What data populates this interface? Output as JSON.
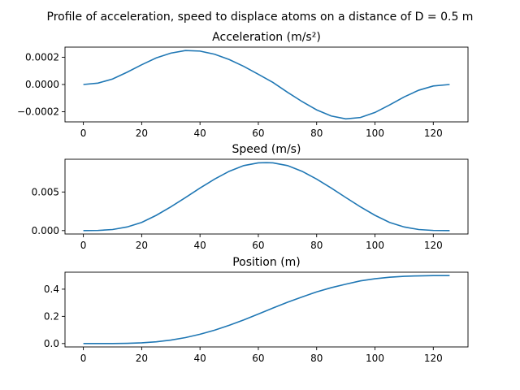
{
  "figure": {
    "suptitle": "Profile of acceleration, speed to displace atoms on a distance of D = 0.5 m",
    "line_color": "#1f77b4"
  },
  "chart_data": [
    {
      "type": "line",
      "title": "Acceleration (m/s²)",
      "xlabel": "",
      "ylabel": "",
      "xlim": [
        -6.3,
        131.9
      ],
      "ylim": [
        -0.000274,
        0.000274
      ],
      "xticks": [
        0,
        20,
        40,
        60,
        80,
        100,
        120
      ],
      "xtick_labels": [
        "0",
        "20",
        "40",
        "60",
        "80",
        "100",
        "120"
      ],
      "yticks": [
        0.0002,
        0.0,
        -0.0002
      ],
      "ytick_labels": [
        "0.0002",
        "0.0000",
        "−0.0002"
      ],
      "grid": false,
      "legend": "none",
      "series": [
        {
          "x": [
            0,
            5,
            10,
            15,
            20,
            25,
            30,
            35,
            40,
            45,
            50,
            55,
            60,
            65,
            70,
            75,
            80,
            85,
            90,
            95,
            100,
            105,
            110,
            115,
            120,
            125.6
          ],
          "y": [
            0.0,
            1e-05,
            4e-05,
            9e-05,
            0.000145,
            0.000195,
            0.00023,
            0.000249,
            0.000245,
            0.000222,
            0.000183,
            0.000133,
            7.5e-05,
            1.5e-05,
            -5.7e-05,
            -0.000125,
            -0.000186,
            -0.000231,
            -0.000252,
            -0.000242,
            -0.000205,
            -0.00015,
            -9.1e-05,
            -4.2e-05,
            -1.1e-05,
            0.0
          ]
        }
      ]
    },
    {
      "type": "line",
      "title": "Speed (m/s)",
      "xlabel": "",
      "ylabel": "",
      "xlim": [
        -6.3,
        131.9
      ],
      "ylim": [
        -0.00044,
        0.00924
      ],
      "xticks": [
        0,
        20,
        40,
        60,
        80,
        100,
        120
      ],
      "xtick_labels": [
        "0",
        "20",
        "40",
        "60",
        "80",
        "100",
        "120"
      ],
      "yticks": [
        0.005,
        0.0
      ],
      "ytick_labels": [
        "0.005",
        "0.000"
      ],
      "grid": false,
      "legend": "none",
      "series": [
        {
          "x": [
            0,
            5,
            10,
            15,
            20,
            25,
            30,
            35,
            40,
            45,
            50,
            55,
            60,
            62.8,
            65,
            70,
            75,
            80,
            85,
            90,
            95,
            100,
            105,
            110,
            115,
            120,
            125.6
          ],
          "y": [
            0.0,
            2e-05,
            0.00014,
            0.00047,
            0.00106,
            0.00198,
            0.00308,
            0.00428,
            0.00551,
            0.00667,
            0.00768,
            0.00842,
            0.00877,
            0.0088,
            0.00877,
            0.00842,
            0.00768,
            0.00667,
            0.00551,
            0.00428,
            0.00308,
            0.00198,
            0.00106,
            0.00047,
            0.00014,
            2e-05,
            0.0
          ]
        }
      ]
    },
    {
      "type": "line",
      "title": "Position (m)",
      "xlabel": "",
      "ylabel": "",
      "xlim": [
        -6.3,
        131.9
      ],
      "ylim": [
        -0.025,
        0.525
      ],
      "xticks": [
        0,
        20,
        40,
        60,
        80,
        100,
        120
      ],
      "xtick_labels": [
        "0",
        "20",
        "40",
        "60",
        "80",
        "100",
        "120"
      ],
      "yticks": [
        0.4,
        0.2,
        0.0
      ],
      "ytick_labels": [
        "0.4",
        "0.2",
        "0.0"
      ],
      "grid": false,
      "legend": "none",
      "series": [
        {
          "x": [
            0,
            5,
            10,
            15,
            20,
            25,
            30,
            35,
            40,
            45,
            50,
            55,
            60,
            65,
            70,
            75,
            80,
            85,
            90,
            95,
            100,
            105,
            110,
            115,
            120,
            125.6
          ],
          "y": [
            0.0,
            0.0,
            0.0003,
            0.0017,
            0.0054,
            0.0128,
            0.0253,
            0.0438,
            0.0682,
            0.0985,
            0.134,
            0.174,
            0.217,
            0.261,
            0.304,
            0.343,
            0.38,
            0.411,
            0.437,
            0.461,
            0.477,
            0.488,
            0.495,
            0.498,
            0.5,
            0.5
          ]
        }
      ]
    }
  ]
}
